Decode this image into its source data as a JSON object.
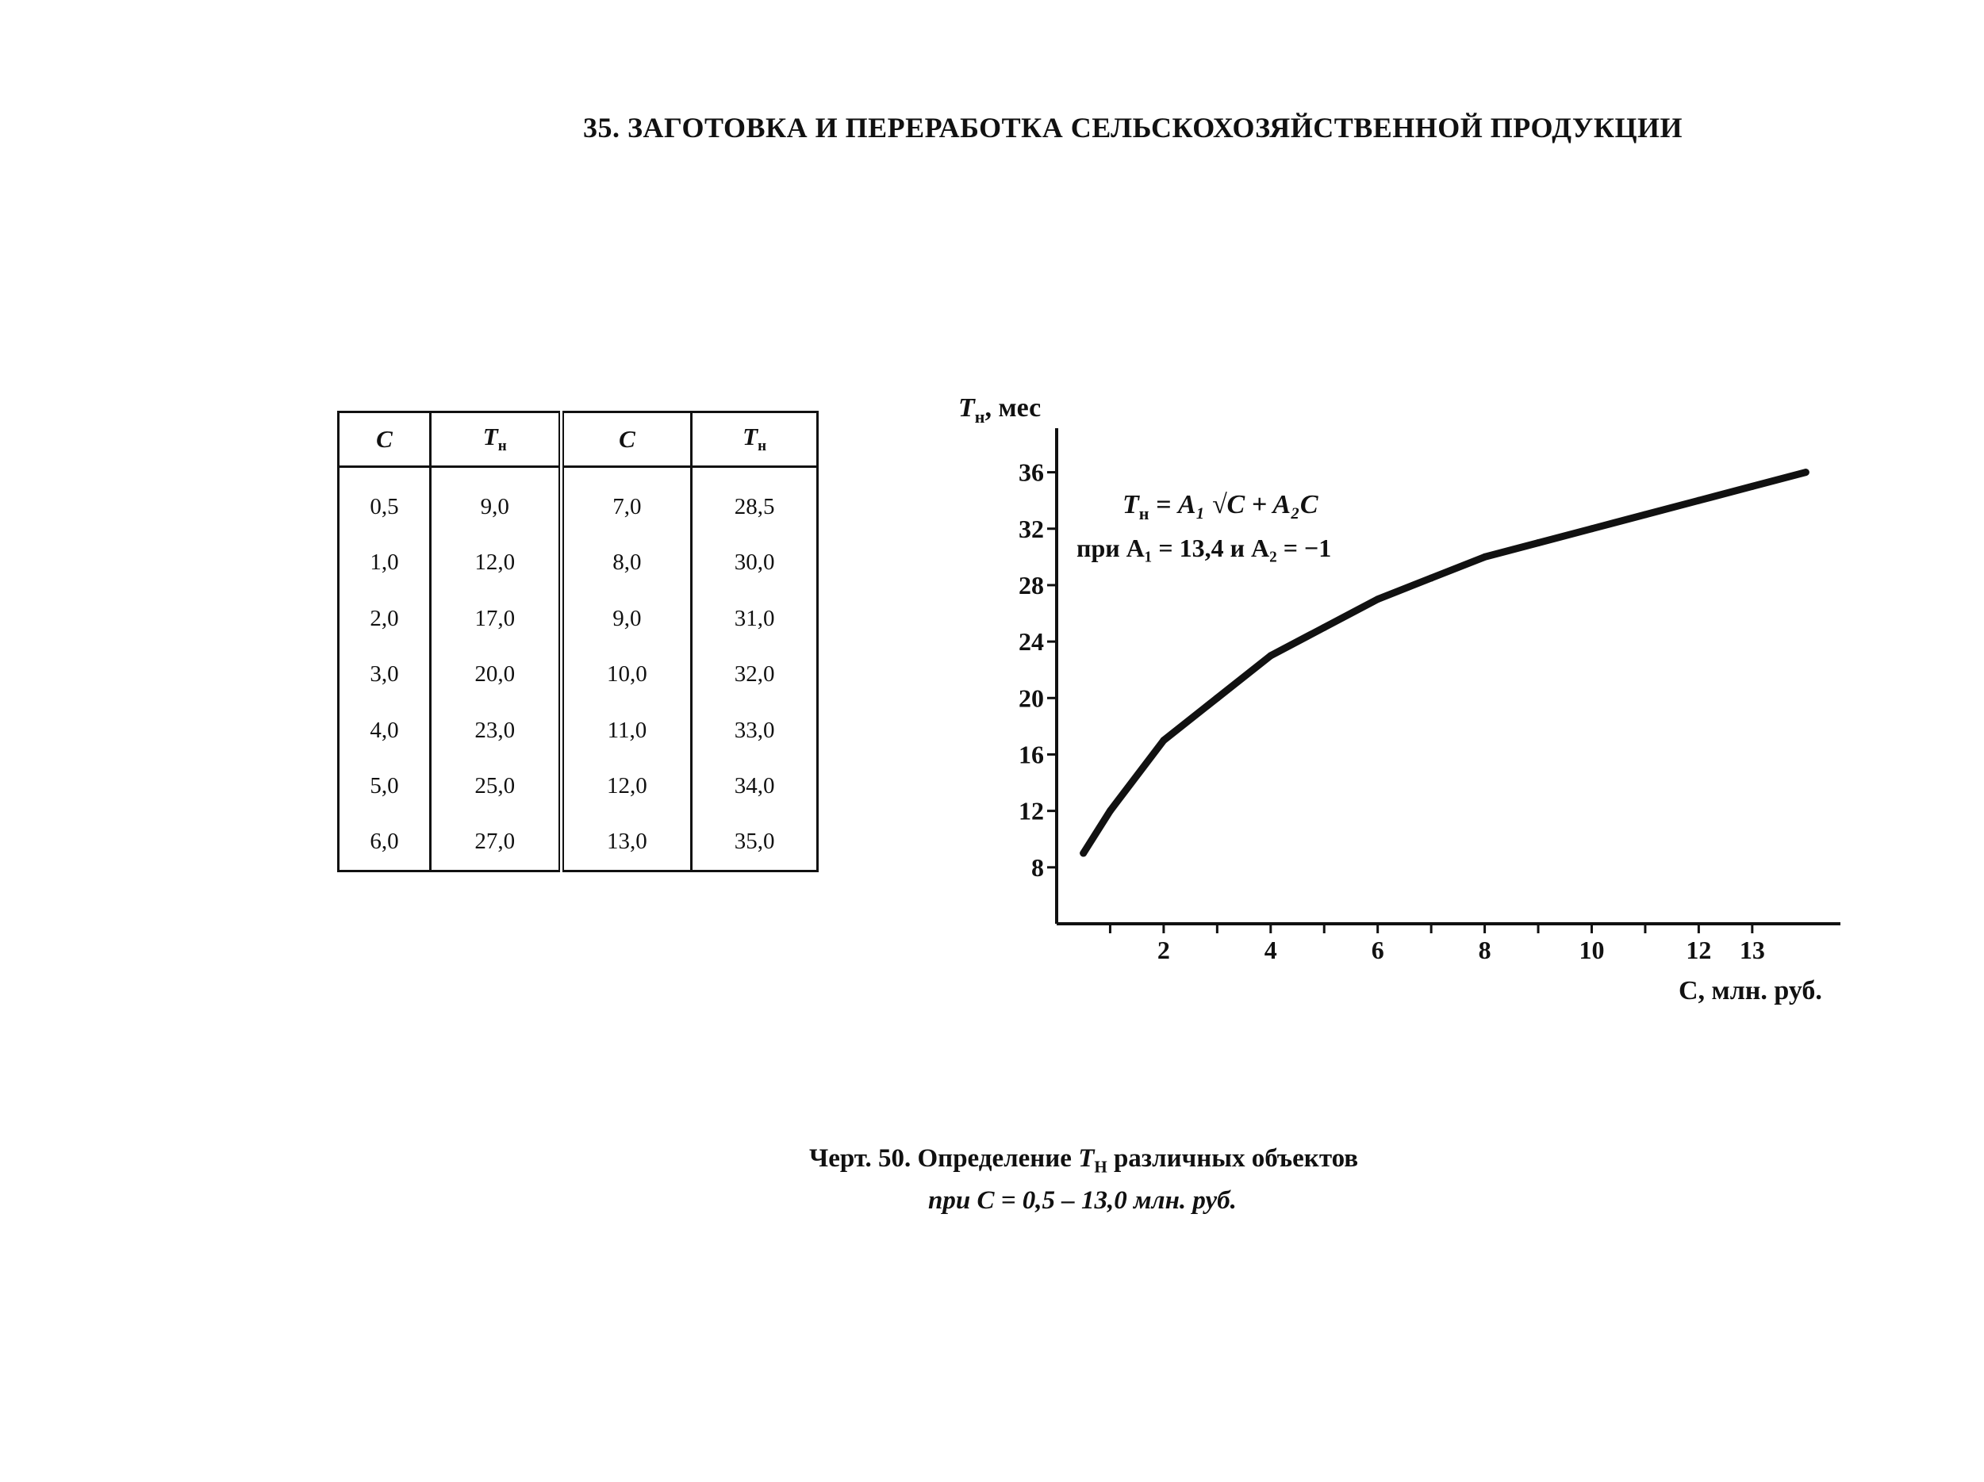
{
  "heading": "35. ЗАГОТОВКА И ПЕРЕРАБОТКА СЕЛЬСКОХОЗЯЙСТВЕННОЙ ПРОДУКЦИИ",
  "table": {
    "headers": [
      {
        "main": "C",
        "sub": ""
      },
      {
        "main": "T",
        "sub": "н"
      },
      {
        "main": "C",
        "sub": ""
      },
      {
        "main": "T",
        "sub": "н"
      }
    ],
    "rows": [
      [
        "0,5",
        "9,0",
        "7,0",
        "28,5"
      ],
      [
        "1,0",
        "12,0",
        "8,0",
        "30,0"
      ],
      [
        "2,0",
        "17,0",
        "9,0",
        "31,0"
      ],
      [
        "3,0",
        "20,0",
        "10,0",
        "32,0"
      ],
      [
        "4,0",
        "23,0",
        "11,0",
        "33,0"
      ],
      [
        "5,0",
        "25,0",
        "12,0",
        "34,0"
      ],
      [
        "6,0",
        "27,0",
        "13,0",
        "35,0"
      ]
    ]
  },
  "chart_data": {
    "type": "line",
    "ylabel_main": "T",
    "ylabel_sub": "н",
    "ylabel_rest": ", мес",
    "xlabel": "C, млн. руб.",
    "formula_line1_lhs": "T",
    "formula_line1_lhs_sub": "н",
    "formula_line1_rhs": " = A₁ √C + A₂C",
    "formula_line2": "при A₁ = 13,4 и A₂ = −1",
    "xlim": [
      0,
      14.5
    ],
    "ylim": [
      4,
      38
    ],
    "x_ticks": [
      1,
      2,
      3,
      4,
      5,
      6,
      7,
      8,
      9,
      10,
      11,
      12,
      13
    ],
    "x_tick_labels": [
      {
        "x": 2,
        "label": "2"
      },
      {
        "x": 4,
        "label": "4"
      },
      {
        "x": 6,
        "label": "6"
      },
      {
        "x": 8,
        "label": "8"
      },
      {
        "x": 10,
        "label": "10"
      },
      {
        "x": 12,
        "label": "12"
      },
      {
        "x": 13,
        "label": "13"
      }
    ],
    "y_ticks": [
      8,
      12,
      16,
      20,
      24,
      28,
      32,
      36
    ],
    "y_tick_labels": [
      "8",
      "12",
      "16",
      "20",
      "24",
      "28",
      "32",
      "36"
    ],
    "series": [
      {
        "x": [
          0.5,
          1,
          2,
          3,
          4,
          5,
          6,
          7,
          8,
          9,
          10,
          11,
          12,
          13,
          14
        ],
        "y": [
          9.0,
          12.0,
          17.0,
          20.0,
          23.0,
          25.0,
          27.0,
          28.5,
          30.0,
          31.0,
          32.0,
          33.0,
          34.0,
          35.0,
          36.0
        ]
      }
    ],
    "grid": false
  },
  "caption": {
    "line1_prefix": "Черт. 50.  Определение ",
    "line1_T": "T",
    "line1_sub": "Н",
    "line1_suffix": " различных объектов",
    "line2": "при C = 0,5 – 13,0 млн. руб."
  }
}
